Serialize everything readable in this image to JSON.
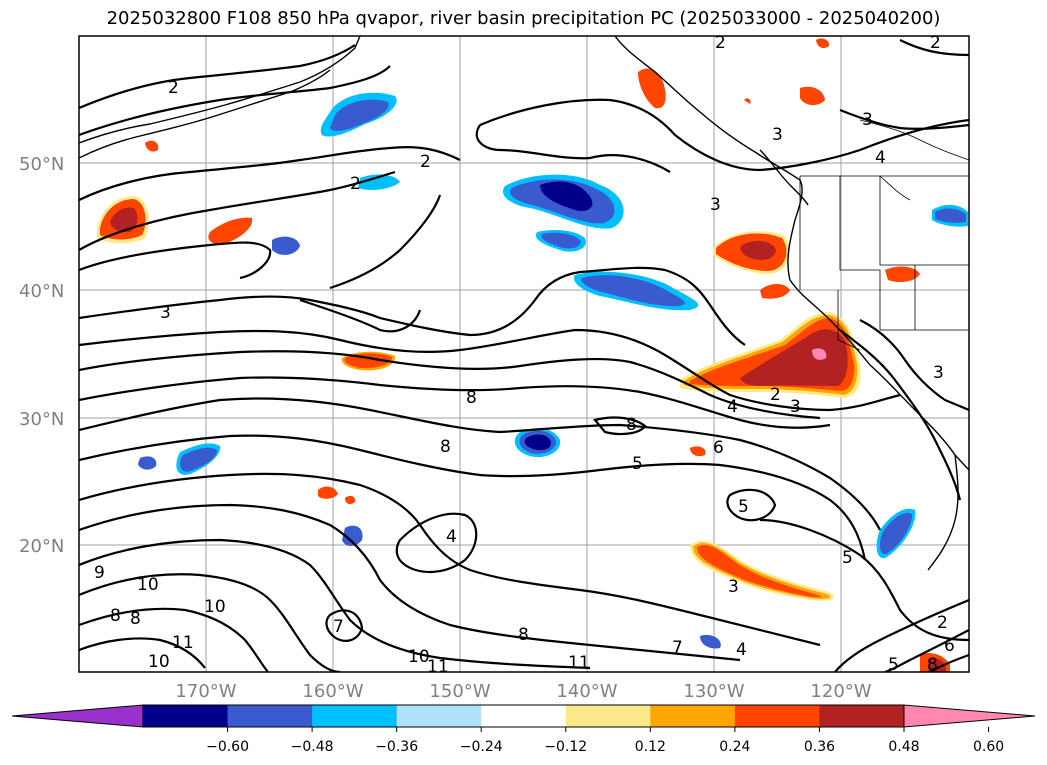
{
  "title": "2025032800 F108 850 hPa qvapor, river basin precipitation PC (2025033000 - 2025040200)",
  "lat_labels": [
    "50°N",
    "40°N",
    "30°N",
    "20°N"
  ],
  "lon_labels": [
    "170°W",
    "160°W",
    "150°W",
    "140°W",
    "130°W",
    "120°W"
  ],
  "contour_labels": [
    "2",
    "2",
    "2",
    "2",
    "2",
    "3",
    "3",
    "3",
    "3",
    "4",
    "3",
    "2",
    "3",
    "4",
    "5",
    "6",
    "5",
    "5",
    "8",
    "8",
    "8",
    "4",
    "9",
    "10",
    "10",
    "8",
    "8",
    "7",
    "8",
    "10",
    "11",
    "10",
    "11",
    "7",
    "11",
    "4",
    "3",
    "2",
    "6",
    "8",
    "5"
  ],
  "colorbar": {
    "ticks": [
      "−0.60",
      "−0.48",
      "−0.36",
      "−0.24",
      "−0.12",
      "0.12",
      "0.24",
      "0.36",
      "0.48",
      "0.60"
    ],
    "colors": [
      "#9932cc",
      "#00008b",
      "#3a5bd0",
      "#00bfff",
      "#ade2fa",
      "#ffffff",
      "#fde98a",
      "#ffa500",
      "#ff4500",
      "#b22222",
      "#ff87b0"
    ]
  },
  "map_features": {
    "positive_color_levels": [
      "#fde98a",
      "#ffa500",
      "#ff4500",
      "#b22222",
      "#ff87b0"
    ],
    "negative_color_levels": [
      "#ade2fa",
      "#00bfff",
      "#3a5bd0",
      "#00008b"
    ]
  }
}
